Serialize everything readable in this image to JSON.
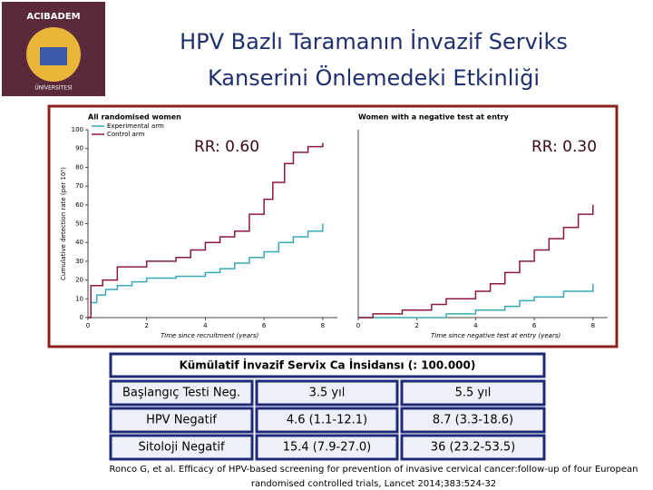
{
  "logo": {
    "name": "ACIBADEM",
    "subtitle": "ÜNİVERSİTESİ"
  },
  "title": [
    "HPV Bazlı Taramanın İnvazif Serviks",
    "Kanserini Önlemedeki Etkinliği"
  ],
  "chart_data": [
    {
      "type": "line",
      "title": "All randomised women",
      "annotation": "RR: 0.60",
      "x_label": "Time since recruitment (years)",
      "y_label": "Cumulative detection rate (per 10⁵)",
      "xlim": [
        0,
        8.5
      ],
      "ylim": [
        0,
        100
      ],
      "xticks": [
        0,
        2,
        4,
        6,
        8
      ],
      "yticks": [
        0,
        10,
        20,
        30,
        40,
        50,
        60,
        70,
        80,
        90,
        100
      ],
      "legend": "top-left",
      "series": [
        {
          "name": "Experimental arm",
          "color": "#3aa9b8",
          "x": [
            0,
            0.1,
            0.3,
            0.6,
            1,
            1.5,
            2,
            3,
            4,
            4.5,
            5,
            5.5,
            6,
            6.5,
            7,
            7.5,
            8
          ],
          "values": [
            0,
            8,
            12,
            15,
            17,
            19,
            21,
            22,
            24,
            26,
            29,
            32,
            35,
            40,
            43,
            46,
            50
          ]
        },
        {
          "name": "Control arm",
          "color": "#8b1a3a",
          "x": [
            0,
            0.1,
            0.5,
            1,
            2,
            3,
            3.5,
            4,
            4.5,
            5,
            5.5,
            6,
            6.3,
            6.7,
            7,
            7.5,
            8
          ],
          "values": [
            0,
            17,
            20,
            27,
            30,
            32,
            36,
            40,
            43,
            46,
            55,
            63,
            72,
            82,
            88,
            91,
            93
          ]
        }
      ]
    },
    {
      "type": "line",
      "title": "Women with a negative test at entry",
      "annotation": "RR: 0.30",
      "x_label": "Time since negative test at entry (years)",
      "xlim": [
        0,
        8.5
      ],
      "ylim": [
        0,
        100
      ],
      "xticks": [
        0,
        2,
        4,
        6,
        8
      ],
      "series": [
        {
          "name": "Experimental arm",
          "color": "#3aa9b8",
          "x": [
            0,
            3,
            4,
            5,
            5.5,
            6,
            7,
            8
          ],
          "values": [
            0,
            2,
            4,
            6,
            9,
            11,
            14,
            18
          ]
        },
        {
          "name": "Control arm",
          "color": "#8b1a3a",
          "x": [
            0,
            0.5,
            1.5,
            2.5,
            3,
            4,
            4.5,
            5,
            5.5,
            6,
            6.5,
            7,
            7.5,
            8
          ],
          "values": [
            0,
            2,
            4,
            7,
            10,
            14,
            18,
            24,
            30,
            36,
            42,
            48,
            55,
            60
          ]
        }
      ]
    }
  ],
  "table": {
    "caption": "Kümülatif İnvazif Servix Ca İnsidansı (: 100.000)",
    "rows": [
      [
        "Başlangıç Testi Neg.",
        "3.5 yıl",
        "5.5 yıl"
      ],
      [
        "HPV Negatif",
        "4.6 (1.1-12.1)",
        "8.7 (3.3-18.6)"
      ],
      [
        "Sitoloji Negatif",
        "15.4 (7.9-27.0)",
        "36 (23.2-53.5)"
      ]
    ]
  },
  "citation": [
    "Ronco G, et al. Efficacy of HPV-based screening for prevention of invasive cervical cancer:follow-up of four European",
    "randomised controlled trials, Lancet 2014;383:524-32"
  ]
}
